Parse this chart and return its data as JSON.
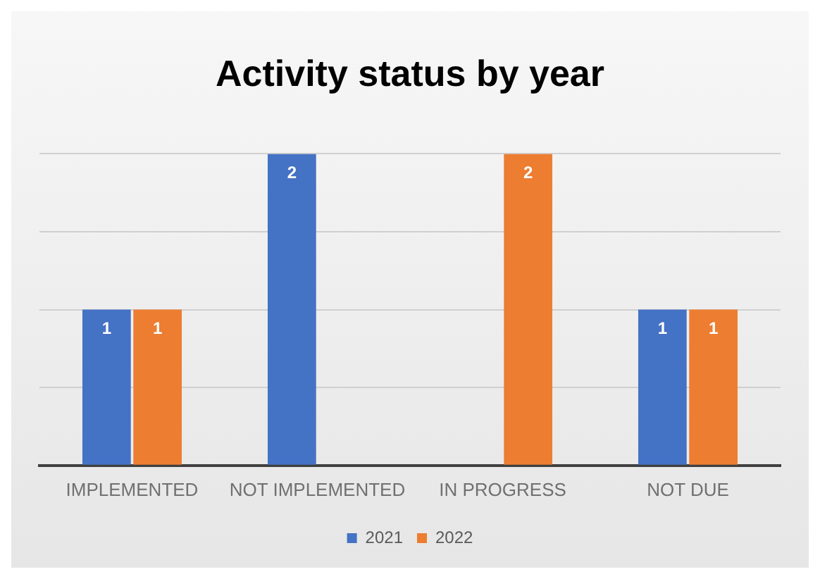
{
  "chart_data": {
    "type": "bar",
    "title": "Activity status by year",
    "categories": [
      "IMPLEMENTED",
      "NOT IMPLEMENTED",
      "IN PROGRESS",
      "NOT DUE"
    ],
    "series": [
      {
        "name": "2021",
        "color": "#4472c4",
        "values": [
          1,
          2,
          null,
          1
        ]
      },
      {
        "name": "2022",
        "color": "#ed7d31",
        "values": [
          1,
          null,
          2,
          1
        ]
      }
    ],
    "ylim": [
      0,
      2
    ],
    "yticks": [
      {
        "value": 0,
        "label": null
      },
      {
        "value": 0.5,
        "label": null
      },
      {
        "value": 1,
        "label": null
      },
      {
        "value": 1.5,
        "label": null
      },
      {
        "value": 2,
        "label": null
      }
    ],
    "tick_labels": "x",
    "grid": "y",
    "legend": "bottom",
    "data_labels": true
  }
}
